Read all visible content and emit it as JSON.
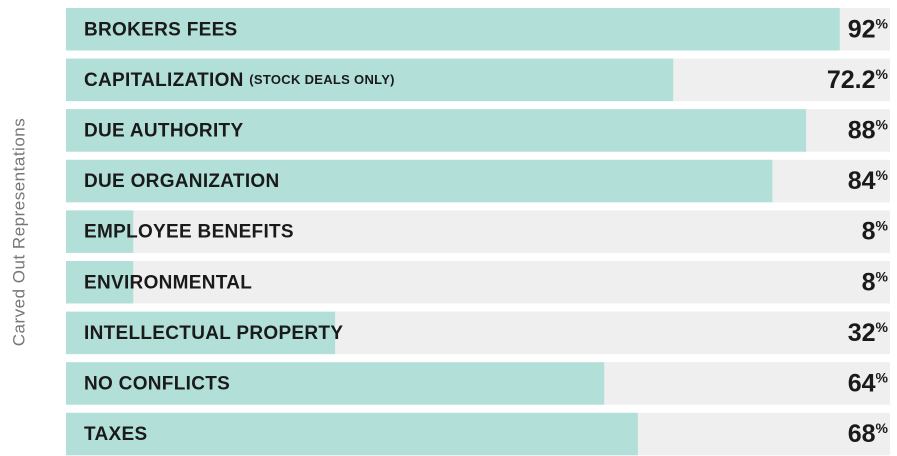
{
  "chart_data": {
    "type": "bar",
    "orientation": "horizontal",
    "y_axis_label": "Carved Out Representations",
    "categories": [
      "BROKERS FEES",
      "CAPITALIZATION (STOCK DEALS ONLY)",
      "DUE AUTHORITY",
      "DUE ORGANIZATION",
      "EMPLOYEE BENEFITS",
      "ENVIRONMENTAL",
      "INTELLECTUAL PROPERTY",
      "NO CONFLICTS",
      "TAXES"
    ],
    "values": [
      92,
      72.2,
      88,
      84,
      8,
      8,
      32,
      64,
      68
    ],
    "value_labels": [
      "92%",
      "72.2%",
      "88%",
      "84%",
      "8%",
      "8%",
      "32%",
      "64%",
      "68%"
    ],
    "xlim": [
      0,
      100
    ],
    "color": "#b2e0d8",
    "track_color": "#efefef"
  }
}
